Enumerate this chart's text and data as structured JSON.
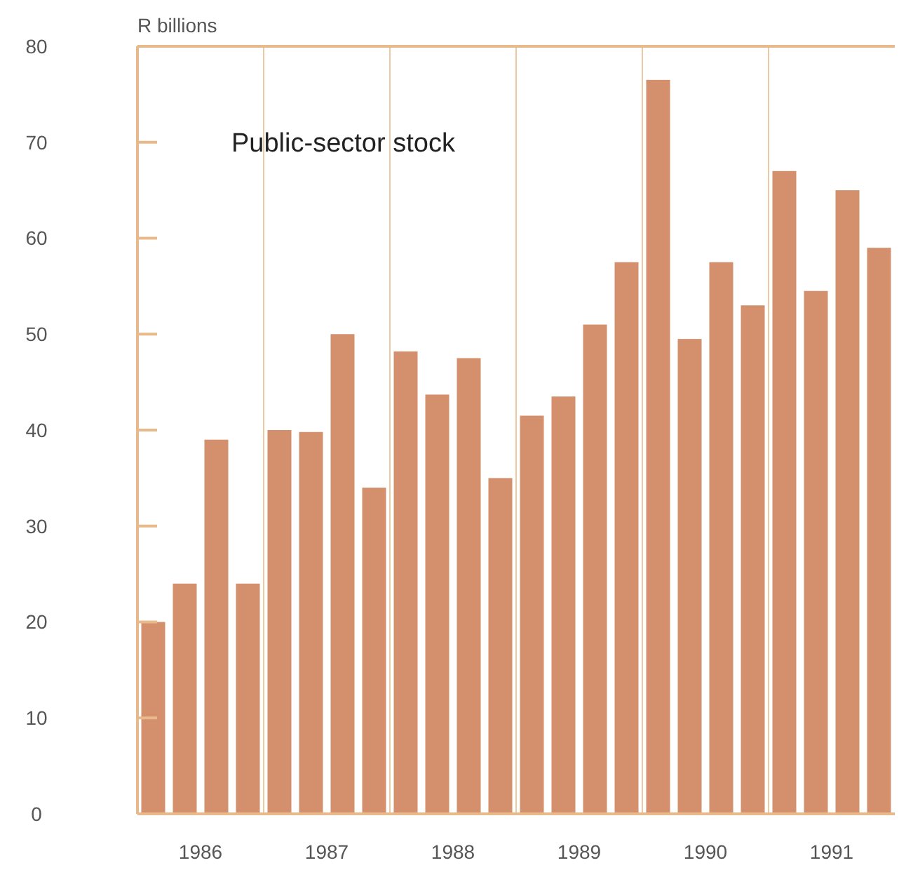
{
  "chart_data": {
    "type": "bar",
    "ylabel": "R billions",
    "annotations": [
      "Public-sector stock"
    ],
    "x": [
      1986.125,
      1986.375,
      1986.625,
      1986.875,
      1987.125,
      1987.375,
      1987.625,
      1987.875,
      1988.125,
      1988.375,
      1988.625,
      1988.875,
      1989.125,
      1989.375,
      1989.625,
      1989.875,
      1990.125,
      1990.375,
      1990.625,
      1990.875,
      1991.125,
      1991.375,
      1991.625,
      1991.875
    ],
    "values": [
      20,
      24,
      39,
      24,
      40,
      39.8,
      50,
      34,
      48.2,
      43.7,
      47.5,
      35,
      41.5,
      43.5,
      51,
      57.5,
      76.5,
      49.5,
      57.5,
      53,
      67,
      54.5,
      65,
      59
    ],
    "color": "#d4906c",
    "xlim": [
      1986,
      1992
    ],
    "xticks": [
      {
        "value": 1986.5,
        "label": "1986"
      },
      {
        "value": 1987.5,
        "label": "1987"
      },
      {
        "value": 1988.5,
        "label": "1988"
      },
      {
        "value": 1989.5,
        "label": "1989"
      },
      {
        "value": 1990.5,
        "label": "1990"
      },
      {
        "value": 1991.5,
        "label": "1991"
      }
    ],
    "ylim": [
      0,
      80
    ],
    "yticks": [
      0,
      10,
      20,
      30,
      40,
      50,
      60,
      70,
      80
    ],
    "ref_lines": [
      {
        "axis": "x",
        "value": 1987,
        "color": "#ecc9a0"
      },
      {
        "axis": "x",
        "value": 1988,
        "color": "#ecc9a0"
      },
      {
        "axis": "x",
        "value": 1989,
        "color": "#ecc9a0"
      },
      {
        "axis": "x",
        "value": 1990,
        "color": "#ecc9a0"
      },
      {
        "axis": "x",
        "value": 1991,
        "color": "#ecc9a0"
      }
    ]
  }
}
